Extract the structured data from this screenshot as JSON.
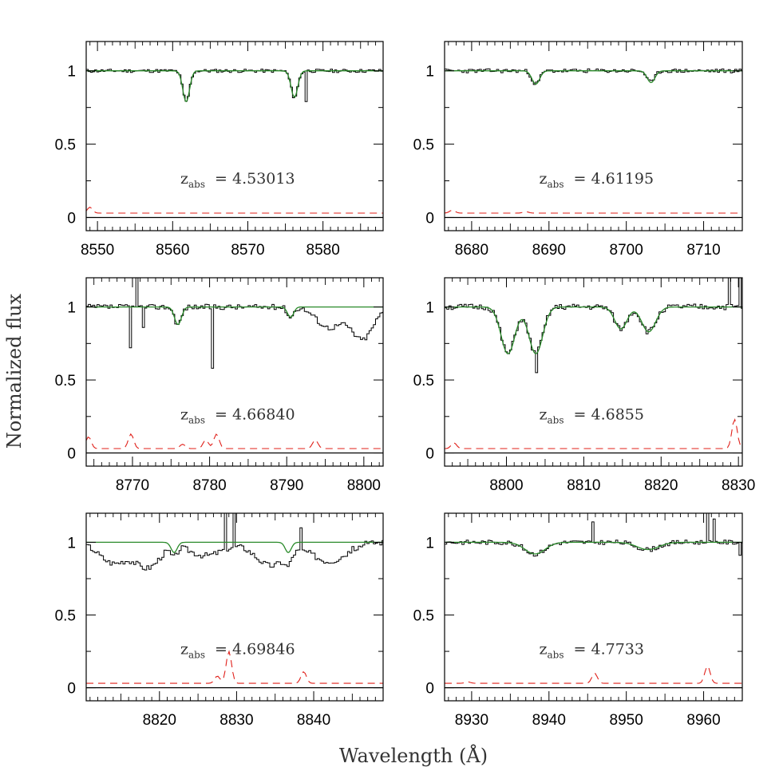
{
  "figure": {
    "ylabel": "Normalized flux",
    "xlabel": "Wavelength (Å)",
    "colors": {
      "spectrum": "#000000",
      "model": "#2a8a2a",
      "error": "#e0201a"
    }
  },
  "chart_data": [
    {
      "type": "line",
      "z_label_main": "z",
      "z_label_sub": "abs",
      "z_value": "= 4.53013",
      "xlim": [
        8548.5,
        8588
      ],
      "ylim": [
        -0.09,
        1.2
      ],
      "xticks": [
        8550,
        8560,
        8570,
        8580
      ],
      "yticks": [
        0,
        0.5,
        1
      ],
      "ytick_labels": [
        "0",
        "0.5",
        "1"
      ],
      "lines": [
        {
          "center": 8561.8,
          "depth": 0.21,
          "width": 0.45
        },
        {
          "center": 8576.2,
          "depth": 0.18,
          "width": 0.45
        }
      ],
      "spikes": [
        {
          "x": 8577.7,
          "y": 0.79
        }
      ],
      "error_level": 0.03,
      "error_bumps": [
        {
          "x": 8549,
          "h": 0.04
        }
      ],
      "noise": 0.012,
      "seed": 11
    },
    {
      "type": "line",
      "z_label_main": "z",
      "z_label_sub": "abs",
      "z_value": "= 4.61195",
      "xlim": [
        8676.5,
        8715
      ],
      "ylim": [
        -0.09,
        1.2
      ],
      "xticks": [
        8680,
        8690,
        8700,
        8710
      ],
      "yticks": [
        0,
        0.5,
        1
      ],
      "ytick_labels": [
        "0",
        "0.5",
        "1"
      ],
      "lines": [
        {
          "center": 8688.3,
          "depth": 0.09,
          "width": 0.5
        },
        {
          "center": 8703.2,
          "depth": 0.08,
          "width": 0.5
        }
      ],
      "spikes": [],
      "error_level": 0.03,
      "error_bumps": [
        {
          "x": 8677.5,
          "h": 0.02
        },
        {
          "x": 8687,
          "h": 0.01
        }
      ],
      "noise": 0.014,
      "seed": 23
    },
    {
      "type": "line",
      "z_label_main": "z",
      "z_label_sub": "abs",
      "z_value": "= 4.66840",
      "xlim": [
        8764,
        8802.5
      ],
      "ylim": [
        -0.09,
        1.2
      ],
      "xticks": [
        8770,
        8780,
        8790,
        8800
      ],
      "yticks": [
        0,
        0.5,
        1
      ],
      "ytick_labels": [
        "0",
        "0.5",
        "1"
      ],
      "lines": [
        {
          "center": 8775.9,
          "depth": 0.12,
          "width": 0.45
        },
        {
          "center": 8790.5,
          "depth": 0.07,
          "width": 0.4
        }
      ],
      "spikes": [
        {
          "x": 8769.8,
          "y": 0.72
        },
        {
          "x": 8770.6,
          "y": 1.3
        },
        {
          "x": 8771.3,
          "y": 0.86
        },
        {
          "x": 8780.4,
          "y": 0.58
        }
      ],
      "broad_dips": [
        {
          "center": 8795.5,
          "depth": 0.14,
          "width": 1.6
        },
        {
          "center": 8799.8,
          "depth": 0.22,
          "width": 1.4
        }
      ],
      "error_level": 0.03,
      "error_bumps": [
        {
          "x": 8764.3,
          "h": 0.08
        },
        {
          "x": 8769.8,
          "h": 0.1
        },
        {
          "x": 8776.5,
          "h": 0.03
        },
        {
          "x": 8779.5,
          "h": 0.06
        },
        {
          "x": 8780.9,
          "h": 0.1
        },
        {
          "x": 8793.7,
          "h": 0.06
        }
      ],
      "noise": 0.018,
      "seed": 37
    },
    {
      "type": "line",
      "z_label_main": "z",
      "z_label_sub": "abs",
      "z_value": "= 4.6855",
      "xlim": [
        8792,
        8830.5
      ],
      "ylim": [
        -0.09,
        1.2
      ],
      "xticks": [
        8800,
        8810,
        8820,
        8830
      ],
      "yticks": [
        0,
        0.5,
        1
      ],
      "ytick_labels": [
        "0",
        "0.5",
        "1"
      ],
      "lines": [
        {
          "center": 8800.2,
          "depth": 0.32,
          "width": 0.9
        },
        {
          "center": 8803.8,
          "depth": 0.32,
          "width": 0.9
        },
        {
          "center": 8814.8,
          "depth": 0.15,
          "width": 0.8
        },
        {
          "center": 8818.4,
          "depth": 0.17,
          "width": 0.9
        }
      ],
      "spikes": [
        {
          "x": 8803.9,
          "y": 0.55
        },
        {
          "x": 8828.7,
          "y": 1.3
        },
        {
          "x": 8830.1,
          "y": 1.3
        }
      ],
      "error_level": 0.03,
      "error_bumps": [
        {
          "x": 8793.2,
          "h": 0.04
        },
        {
          "x": 8829.5,
          "h": 0.2
        }
      ],
      "noise": 0.02,
      "seed": 51
    },
    {
      "type": "line",
      "z_label_main": "z",
      "z_label_sub": "abs",
      "z_value": "= 4.69846",
      "xlim": [
        8810.5,
        8849
      ],
      "ylim": [
        -0.09,
        1.2
      ],
      "xticks": [
        8820,
        8830,
        8840
      ],
      "yticks": [
        0,
        0.5,
        1
      ],
      "ytick_labels": [
        "0",
        "0.5",
        "1"
      ],
      "lines": [
        {
          "center": 8821.9,
          "depth": 0.07,
          "width": 0.4
        },
        {
          "center": 8836.7,
          "depth": 0.07,
          "width": 0.4
        }
      ],
      "spikes": [
        {
          "x": 8828.6,
          "y": 1.3
        },
        {
          "x": 8829.6,
          "y": 1.3
        },
        {
          "x": 8838.5,
          "y": 1.1
        }
      ],
      "broad_dips": [
        {
          "center": 8814,
          "depth": 0.14,
          "width": 1.8
        },
        {
          "center": 8818.5,
          "depth": 0.17,
          "width": 1.6
        },
        {
          "center": 8826,
          "depth": 0.09,
          "width": 2.2
        },
        {
          "center": 8834.5,
          "depth": 0.16,
          "width": 2.0
        },
        {
          "center": 8842,
          "depth": 0.13,
          "width": 2.2
        }
      ],
      "error_level": 0.03,
      "error_bumps": [
        {
          "x": 8827.5,
          "h": 0.05
        },
        {
          "x": 8829.0,
          "h": 0.22
        },
        {
          "x": 8838.7,
          "h": 0.08
        }
      ],
      "noise": 0.02,
      "seed": 67
    },
    {
      "type": "line",
      "z_label_main": "z",
      "z_label_sub": "abs",
      "z_value": "= 4.7733",
      "xlim": [
        8926.5,
        8965
      ],
      "ylim": [
        -0.09,
        1.2
      ],
      "xticks": [
        8930,
        8940,
        8950,
        8960
      ],
      "yticks": [
        0,
        0.5,
        1
      ],
      "ytick_labels": [
        "0",
        "0.5",
        "1"
      ],
      "lines": [
        {
          "center": 8938.2,
          "depth": 0.08,
          "width": 1.3
        },
        {
          "center": 8952.8,
          "depth": 0.05,
          "width": 1.4
        }
      ],
      "spikes": [
        {
          "x": 8945.8,
          "y": 1.14
        },
        {
          "x": 8960.5,
          "y": 1.3
        },
        {
          "x": 8961.3,
          "y": 1.16
        },
        {
          "x": 8964.7,
          "y": 0.91
        }
      ],
      "error_level": 0.03,
      "error_bumps": [
        {
          "x": 8929.5,
          "h": 0.01
        },
        {
          "x": 8945.9,
          "h": 0.07
        },
        {
          "x": 8960.5,
          "h": 0.12
        }
      ],
      "noise": 0.016,
      "seed": 83
    }
  ]
}
